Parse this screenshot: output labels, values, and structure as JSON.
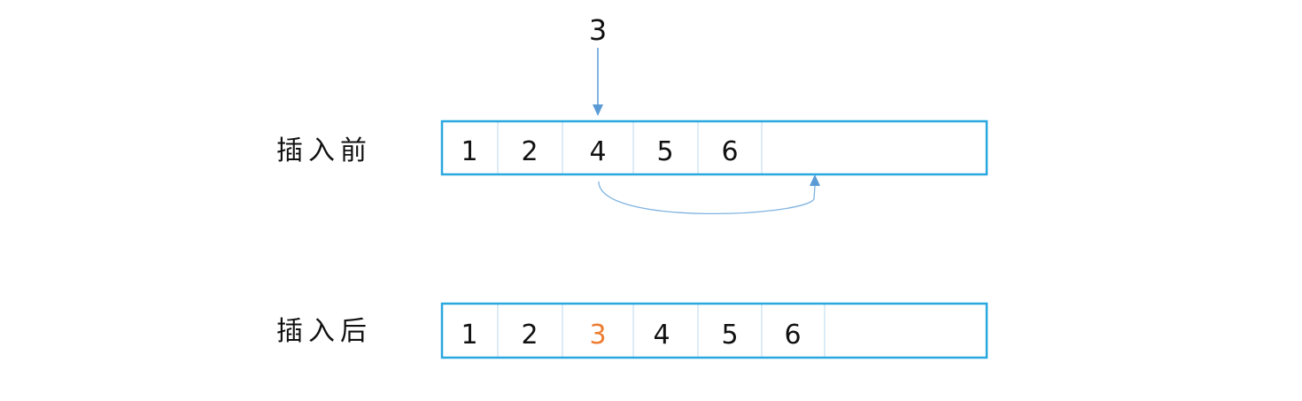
{
  "insert_value": "3",
  "colors": {
    "array_border": "#29a8e0",
    "cell_divider": "#b8d9ec",
    "arrow": "#5b9bd5",
    "curve": "#7fb3e0",
    "highlight": "#ed7d31"
  },
  "rows": [
    {
      "label": "插入前",
      "cells": [
        "1",
        "2",
        "4",
        "5",
        "6",
        ""
      ]
    },
    {
      "label": "插入后",
      "cells": [
        "1",
        "2",
        "3",
        "4",
        "5",
        "6",
        ""
      ],
      "highlight_index": 2
    }
  ]
}
